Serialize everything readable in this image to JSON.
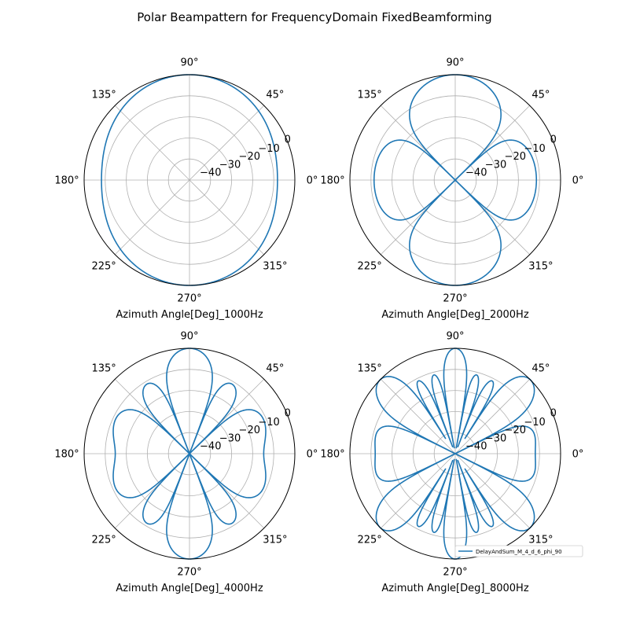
{
  "figure": {
    "title": "Polar Beampattern for FrequencyDomain FixedBeamforming"
  },
  "chart_data": [
    {
      "type": "line",
      "projection": "polar",
      "xlabel": "Azimuth Angle[Deg]_1000Hz",
      "angle_ticks": [
        "0°",
        "45°",
        "90°",
        "135°",
        "180°",
        "225°",
        "270°",
        "315°"
      ],
      "radial_ticks": [
        "−40",
        "−30",
        "−20",
        "−10",
        "0"
      ],
      "rlim": [
        -50,
        0
      ],
      "grid": true,
      "series": [
        {
          "color": "#1f77b4",
          "frequency_hz": 1000,
          "mic_count": 4,
          "spacing": 6
        }
      ]
    },
    {
      "type": "line",
      "projection": "polar",
      "xlabel": "Azimuth Angle[Deg]_2000Hz",
      "angle_ticks": [
        "0°",
        "45°",
        "90°",
        "135°",
        "180°",
        "225°",
        "270°",
        "315°"
      ],
      "radial_ticks": [
        "−40",
        "−30",
        "−20",
        "−10",
        "0"
      ],
      "rlim": [
        -50,
        0
      ],
      "grid": true,
      "series": [
        {
          "color": "#1f77b4",
          "frequency_hz": 2000,
          "mic_count": 4,
          "spacing": 6
        }
      ]
    },
    {
      "type": "line",
      "projection": "polar",
      "xlabel": "Azimuth Angle[Deg]_4000Hz",
      "angle_ticks": [
        "0°",
        "45°",
        "90°",
        "135°",
        "180°",
        "225°",
        "270°",
        "315°"
      ],
      "radial_ticks": [
        "−40",
        "−30",
        "−20",
        "−10",
        "0"
      ],
      "rlim": [
        -50,
        0
      ],
      "grid": true,
      "series": [
        {
          "color": "#1f77b4",
          "frequency_hz": 4000,
          "mic_count": 4,
          "spacing": 6
        }
      ]
    },
    {
      "type": "line",
      "projection": "polar",
      "xlabel": "Azimuth Angle[Deg]_8000Hz",
      "angle_ticks": [
        "0°",
        "45°",
        "90°",
        "135°",
        "180°",
        "225°",
        "270°",
        "315°"
      ],
      "radial_ticks": [
        "−40",
        "−30",
        "−20",
        "−10",
        "0"
      ],
      "rlim": [
        -50,
        0
      ],
      "grid": true,
      "legend": {
        "placement": "lower-right",
        "entries": [
          "DelayAndSum_M_4_d_6_phi_90"
        ]
      },
      "series": [
        {
          "name": "DelayAndSum_M_4_d_6_phi_90",
          "color": "#1f77b4",
          "frequency_hz": 8000,
          "mic_count": 4,
          "spacing": 6
        }
      ]
    }
  ]
}
